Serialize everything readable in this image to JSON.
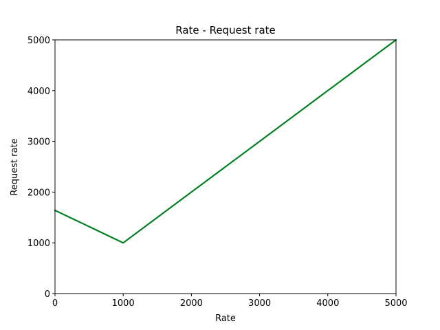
{
  "chart_data": {
    "type": "line",
    "title": "Rate - Request rate",
    "xlabel": "Rate",
    "ylabel": "Request rate",
    "xlim": [
      0,
      5000
    ],
    "ylim": [
      0,
      5000
    ],
    "xticks": [
      0,
      1000,
      2000,
      3000,
      4000,
      5000
    ],
    "yticks": [
      0,
      1000,
      2000,
      3000,
      4000,
      5000
    ],
    "grid": false,
    "series": [
      {
        "color": "#008020",
        "x": [
          0,
          1000,
          2000,
          3000,
          4000,
          5000
        ],
        "y": [
          1640,
          1000,
          2000,
          3000,
          4000,
          5000
        ]
      }
    ]
  }
}
